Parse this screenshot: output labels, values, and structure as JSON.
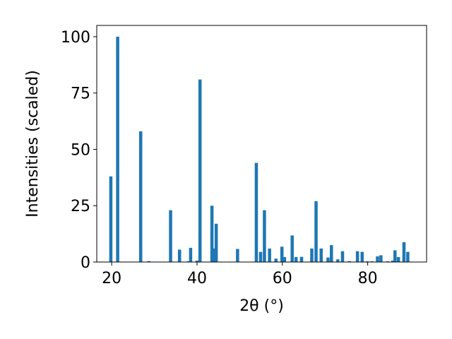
{
  "chart_data": {
    "type": "bar",
    "xlabel": "2θ (°)",
    "ylabel": "Intensities (scaled)",
    "xlim": [
      16.5,
      93.8
    ],
    "ylim": [
      0,
      105
    ],
    "xticks": [
      20,
      40,
      60,
      80
    ],
    "yticks": [
      0,
      25,
      50,
      75,
      100
    ],
    "grid": false,
    "bar_width": 0.75,
    "bar_color": "#1f77b4",
    "x": [
      19.8,
      21.4,
      26.8,
      28.7,
      33.8,
      35.9,
      37.9,
      38.5,
      40.0,
      40.7,
      43.5,
      43.9,
      44.5,
      49.5,
      53.9,
      54.9,
      55.8,
      57.0,
      58.5,
      59.9,
      60.5,
      62.3,
      63.2,
      64.5,
      66.9,
      67.9,
      69.1,
      70.7,
      71.5,
      73.0,
      74.1,
      75.7,
      77.6,
      78.7,
      79.9,
      81.0,
      82.3,
      83.1,
      84.7,
      85.9,
      86.4,
      87.2,
      88.5,
      89.4
    ],
    "values": [
      38,
      100,
      58,
      0.4,
      23,
      5.5,
      0.3,
      6.3,
      0.6,
      81,
      25,
      6,
      17,
      5.8,
      44,
      4.5,
      23,
      6,
      1.5,
      6.8,
      2.2,
      11.8,
      2.2,
      2.3,
      6,
      27,
      6,
      2,
      7.5,
      1.2,
      4.8,
      0.4,
      4.8,
      4.5,
      0.3,
      0.3,
      2.5,
      3,
      0.3,
      0.6,
      5.2,
      2.2,
      8.8,
      4.5
    ]
  }
}
